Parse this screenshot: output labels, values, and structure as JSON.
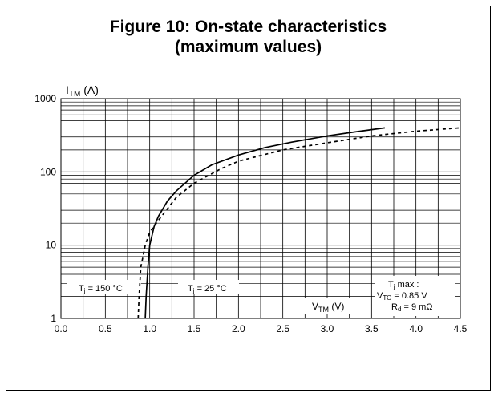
{
  "figure": {
    "title_line1": "Figure 10: On-state characteristics",
    "title_line2": "(maximum values)"
  },
  "chart_data": {
    "type": "line",
    "title": "Figure 10: On-state characteristics (maximum values)",
    "ylabel_main": "I",
    "ylabel_sub": "TM",
    "ylabel_unit": " (A)",
    "xlabel_main": "V",
    "xlabel_sub": "TM",
    "xlabel_unit": " (V)",
    "x_scale": "linear",
    "y_scale": "log",
    "xlim": [
      0.0,
      4.5
    ],
    "ylim": [
      1,
      1000
    ],
    "x_ticks": [
      "0.0",
      "0.5",
      "1.0",
      "1.5",
      "2.0",
      "2.5",
      "3.0",
      "3.5",
      "4.0",
      "4.5"
    ],
    "y_ticks": [
      "1",
      "10",
      "100",
      "1000"
    ],
    "grid": true,
    "series": [
      {
        "name": "Tj = 25 °C",
        "style": "solid",
        "color": "#000000",
        "x": [
          0.95,
          0.96,
          0.98,
          1.0,
          1.05,
          1.1,
          1.2,
          1.3,
          1.5,
          1.7,
          2.0,
          2.3,
          2.6,
          3.0,
          3.3,
          3.65
        ],
        "y": [
          1,
          2,
          5,
          10,
          18,
          25,
          40,
          55,
          90,
          125,
          170,
          215,
          255,
          310,
          350,
          400
        ]
      },
      {
        "name": "Tj = 150 °C",
        "style": "dashed",
        "color": "#000000",
        "x": [
          0.87,
          0.88,
          0.9,
          0.95,
          1.0,
          1.1,
          1.3,
          1.5,
          1.8,
          2.0,
          2.5,
          3.0,
          3.5,
          4.0,
          4.5
        ],
        "y": [
          1,
          2,
          5,
          10,
          15,
          22,
          45,
          70,
          110,
          140,
          200,
          250,
          310,
          360,
          400
        ]
      }
    ],
    "annotations": {
      "t150": {
        "main": "T",
        "sub": "j",
        "rest": " = 150 °C"
      },
      "t25": {
        "main": "T",
        "sub": "j",
        "rest": " = 25 °C"
      },
      "tjmax": {
        "main": "T",
        "sub": "j",
        "rest": " max :"
      },
      "vto": {
        "main": "V",
        "sub": "TO",
        "rest": " = 0.85 V"
      },
      "rd": {
        "main": "R",
        "sub": "d",
        "rest": " = 9 mΩ"
      }
    }
  }
}
